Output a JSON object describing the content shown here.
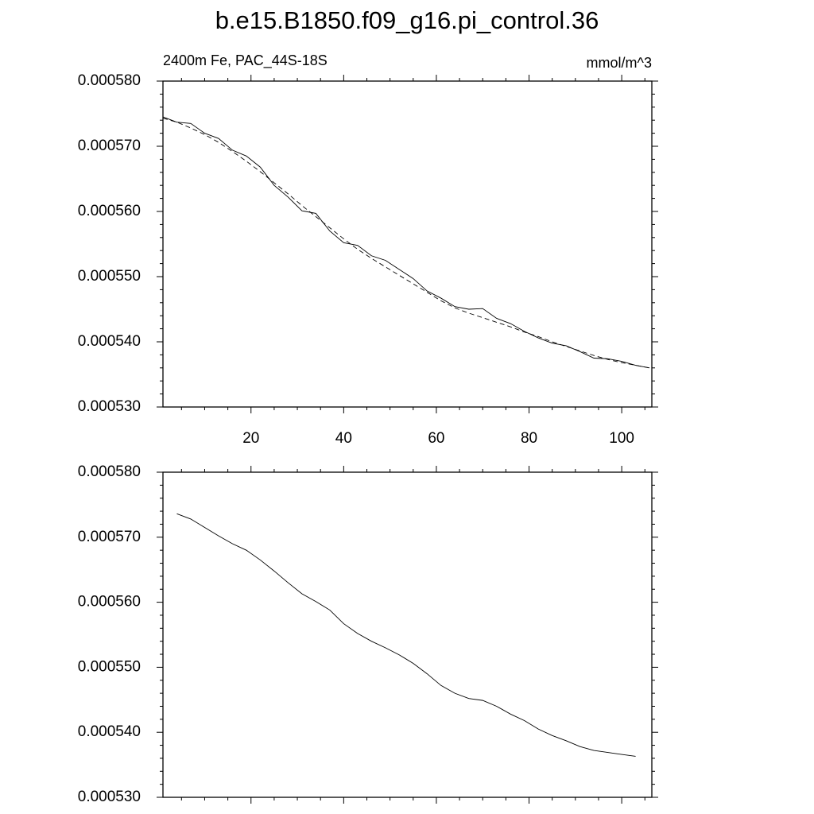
{
  "chart_data": [
    {
      "type": "line",
      "title": "b.e15.B1850.f09_g16.pi_control.36",
      "subtitle_left": "2400m Fe, PAC_44S-18S",
      "subtitle_right": "mmol/m^3",
      "x": [
        1,
        4,
        7,
        10,
        13,
        16,
        19,
        22,
        25,
        28,
        31,
        34,
        37,
        40,
        43,
        46,
        49,
        52,
        55,
        58,
        61,
        64,
        67,
        70,
        73,
        76,
        79,
        82,
        85,
        88,
        91,
        94,
        97,
        100,
        103,
        106
      ],
      "series": [
        {
          "color": "#000000",
          "dash": false,
          "values": [
            0.0005745,
            0.0005737,
            0.0005735,
            0.000572,
            0.0005712,
            0.0005694,
            0.0005685,
            0.0005668,
            0.000564,
            0.0005622,
            0.0005601,
            0.0005597,
            0.000557,
            0.0005552,
            0.0005548,
            0.0005532,
            0.0005525,
            0.0005511,
            0.0005497,
            0.0005478,
            0.0005467,
            0.0005454,
            0.000545,
            0.0005451,
            0.0005436,
            0.0005428,
            0.0005416,
            0.0005406,
            0.0005398,
            0.0005394,
            0.0005385,
            0.0005375,
            0.0005374,
            0.000537,
            0.0005364,
            0.000536
          ]
        },
        {
          "color": "#000000",
          "dash": true,
          "values": [
            0.0005743,
            0.0005737,
            0.0005728,
            0.0005718,
            0.0005706,
            0.0005692,
            0.0005677,
            0.0005661,
            0.0005644,
            0.0005627,
            0.0005609,
            0.0005592,
            0.0005575,
            0.0005558,
            0.0005542,
            0.0005528,
            0.0005515,
            0.0005502,
            0.0005489,
            0.0005476,
            0.0005463,
            0.0005452,
            0.0005444,
            0.0005437,
            0.000543,
            0.0005423,
            0.0005415,
            0.0005408,
            0.00054,
            0.0005393,
            0.0005386,
            0.0005379,
            0.0005373,
            0.0005368,
            0.0005364,
            0.000536
          ]
        }
      ],
      "xlim": [
        1,
        106.5
      ],
      "xticks": [
        20,
        40,
        60,
        80,
        100
      ],
      "xtick_labels": true,
      "ylim": [
        0.00053,
        0.00058
      ],
      "yticks": [
        {
          "value": 0.00053,
          "label": "0.000530"
        },
        {
          "value": 0.00054,
          "label": "0.000540"
        },
        {
          "value": 0.00055,
          "label": "0.000550"
        },
        {
          "value": 0.00056,
          "label": "0.000560"
        },
        {
          "value": 0.00057,
          "label": "0.000570"
        },
        {
          "value": 0.00058,
          "label": "0.000580"
        }
      ]
    },
    {
      "type": "line",
      "x": [
        1,
        4,
        7,
        10,
        13,
        16,
        19,
        22,
        25,
        28,
        31,
        34,
        37,
        40,
        43,
        46,
        49,
        52,
        55,
        58,
        61,
        64,
        67,
        70,
        73,
        76,
        79,
        82,
        85,
        88,
        91,
        94,
        97,
        100,
        103,
        106
      ],
      "series": [
        {
          "color": "#000000",
          "dash": false,
          "values": [
            null,
            0.0005736,
            0.0005728,
            0.0005715,
            0.0005702,
            0.000569,
            0.000568,
            0.0005665,
            0.0005648,
            0.000563,
            0.0005613,
            0.0005601,
            0.0005588,
            0.0005567,
            0.0005552,
            0.000554,
            0.000553,
            0.0005519,
            0.0005506,
            0.000549,
            0.0005472,
            0.000546,
            0.0005452,
            0.0005449,
            0.000544,
            0.0005428,
            0.0005418,
            0.0005405,
            0.0005395,
            0.0005387,
            0.0005378,
            0.0005372,
            0.0005369,
            0.0005366,
            0.0005363,
            null
          ]
        }
      ],
      "xlim": [
        1,
        106.5
      ],
      "xticks": [
        20,
        40,
        60,
        80,
        100
      ],
      "xtick_labels": false,
      "ylim": [
        0.00053,
        0.00058
      ],
      "yticks": [
        {
          "value": 0.00053,
          "label": "0.000530"
        },
        {
          "value": 0.00054,
          "label": "0.000540"
        },
        {
          "value": 0.00055,
          "label": "0.000550"
        },
        {
          "value": 0.00056,
          "label": "0.000560"
        },
        {
          "value": 0.00057,
          "label": "0.000570"
        },
        {
          "value": 0.00058,
          "label": "0.000580"
        }
      ]
    }
  ]
}
